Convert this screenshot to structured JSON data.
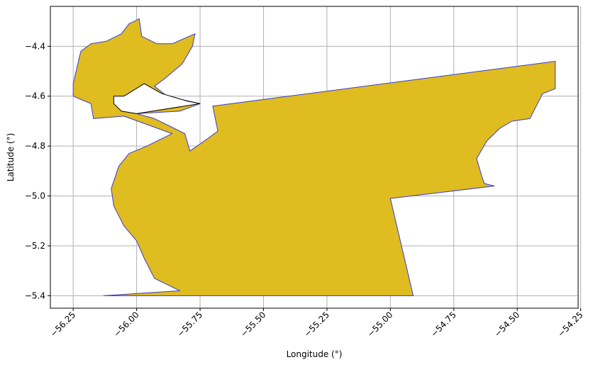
{
  "chart_data": {
    "type": "map",
    "xlabel": "Longitude (°)",
    "ylabel": "Latitude (°)",
    "xlim": [
      -56.34,
      -54.26
    ],
    "ylim": [
      -5.45,
      -4.24
    ],
    "x_ticks": [
      -56.25,
      -56.0,
      -55.75,
      -55.5,
      -55.25,
      -55.0,
      -54.75,
      -54.5,
      -54.25
    ],
    "x_tick_labels": [
      "−56.25",
      "−56.00",
      "−55.75",
      "−55.50",
      "−55.25",
      "−55.00",
      "−54.75",
      "−54.50",
      "−54.25"
    ],
    "y_ticks": [
      -4.4,
      -4.6,
      -4.8,
      -5.0,
      -5.2,
      -5.4
    ],
    "y_tick_labels": [
      "−4.4",
      "−4.6",
      "−4.8",
      "−5.0",
      "−5.2",
      "−5.4"
    ],
    "grid": true,
    "regions": [
      {
        "name": "main-region",
        "fill": "#dfbc1f",
        "stroke": "#3b3bd0",
        "coords": [
          [
            -56.25,
            -4.55
          ],
          [
            -56.22,
            -4.42
          ],
          [
            -56.18,
            -4.39
          ],
          [
            -56.12,
            -4.38
          ],
          [
            -56.06,
            -4.35
          ],
          [
            -56.03,
            -4.31
          ],
          [
            -55.99,
            -4.29
          ],
          [
            -55.98,
            -4.36
          ],
          [
            -55.92,
            -4.39
          ],
          [
            -55.86,
            -4.39
          ],
          [
            -55.77,
            -4.35
          ],
          [
            -55.78,
            -4.4
          ],
          [
            -55.82,
            -4.47
          ],
          [
            -55.89,
            -4.53
          ],
          [
            -55.93,
            -4.56
          ],
          [
            -55.88,
            -4.6
          ],
          [
            -55.75,
            -4.63
          ],
          [
            -55.83,
            -4.66
          ],
          [
            -56.0,
            -4.67
          ],
          [
            -55.93,
            -4.69
          ],
          [
            -55.85,
            -4.73
          ],
          [
            -55.81,
            -4.75
          ],
          [
            -55.79,
            -4.82
          ],
          [
            -55.72,
            -4.77
          ],
          [
            -55.68,
            -4.74
          ],
          [
            -55.7,
            -4.64
          ],
          [
            -54.35,
            -4.46
          ],
          [
            -54.35,
            -4.57
          ],
          [
            -54.4,
            -4.59
          ],
          [
            -54.45,
            -4.69
          ],
          [
            -54.52,
            -4.7
          ],
          [
            -54.57,
            -4.73
          ],
          [
            -54.62,
            -4.78
          ],
          [
            -54.66,
            -4.85
          ],
          [
            -54.64,
            -4.92
          ],
          [
            -54.63,
            -4.95
          ],
          [
            -54.59,
            -4.96
          ],
          [
            -55.0,
            -5.01
          ],
          [
            -54.91,
            -5.4
          ],
          [
            -56.13,
            -5.4
          ],
          [
            -55.83,
            -5.38
          ],
          [
            -55.93,
            -5.33
          ],
          [
            -55.97,
            -5.25
          ],
          [
            -56.0,
            -5.18
          ],
          [
            -56.05,
            -5.12
          ],
          [
            -56.09,
            -5.04
          ],
          [
            -56.1,
            -4.97
          ],
          [
            -56.07,
            -4.88
          ],
          [
            -56.03,
            -4.83
          ],
          [
            -55.96,
            -4.8
          ],
          [
            -55.86,
            -4.75
          ],
          [
            -56.05,
            -4.68
          ],
          [
            -56.17,
            -4.69
          ],
          [
            -56.18,
            -4.63
          ],
          [
            -56.25,
            -4.6
          ]
        ]
      },
      {
        "name": "enclave-region",
        "fill": "#ffffff",
        "stroke": "#000000",
        "coords": [
          [
            -56.09,
            -4.6
          ],
          [
            -56.05,
            -4.6
          ],
          [
            -55.97,
            -4.55
          ],
          [
            -55.9,
            -4.59
          ],
          [
            -55.8,
            -4.62
          ],
          [
            -55.75,
            -4.63
          ],
          [
            -56.0,
            -4.67
          ],
          [
            -56.06,
            -4.66
          ],
          [
            -56.09,
            -4.63
          ]
        ]
      }
    ]
  },
  "colors": {
    "region_fill": "#dfbc1f",
    "region_edge": "#3b3bd0",
    "enclave_edge": "#000000",
    "grid": "#b0b0b0"
  }
}
